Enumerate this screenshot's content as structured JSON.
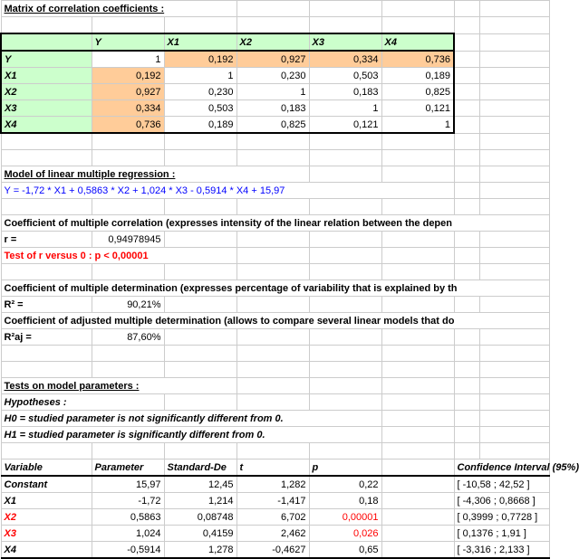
{
  "colors": {
    "green": "#ccffcc",
    "orange": "#ffcc99",
    "red_text": "#ff0000",
    "blue_text": "#0000ff"
  },
  "corr": {
    "title": "Matrix of correlation coefficients :",
    "headers": [
      "Y",
      "X1",
      "X2",
      "X3",
      "X4"
    ],
    "rows": [
      {
        "label": "Y",
        "vals": [
          "1",
          "0,192",
          "0,927",
          "0,334",
          "0,736"
        ]
      },
      {
        "label": "X1",
        "vals": [
          "0,192",
          "1",
          "0,230",
          "0,503",
          "0,189"
        ]
      },
      {
        "label": "X2",
        "vals": [
          "0,927",
          "0,230",
          "1",
          "0,183",
          "0,825"
        ]
      },
      {
        "label": "X3",
        "vals": [
          "0,334",
          "0,503",
          "0,183",
          "1",
          "0,121"
        ]
      },
      {
        "label": "X4",
        "vals": [
          "0,736",
          "0,189",
          "0,825",
          "0,121",
          "1"
        ]
      }
    ]
  },
  "model": {
    "title": "Model of linear multiple regression :",
    "formula": "Y = -1,72 * X1 + 0,5863 * X2 + 1,024 * X3 - 0,5914 * X4 + 15,97"
  },
  "r": {
    "title": "Coefficient of multiple correlation (expresses intensity of the linear relation between the depen",
    "label": "r =",
    "value": "0,94978945",
    "test": "Test of r versus 0 : p < 0,00001"
  },
  "r2": {
    "title": "Coefficient of multiple determination (expresses percentage of variability that is explained by th",
    "label": "R² =",
    "value": "90,21%"
  },
  "r2aj": {
    "title": "Coefficient of adjusted multiple determination (allows to compare several linear models that do",
    "label": "R²aj =",
    "value": "87,60%"
  },
  "tests": {
    "title": "Tests on model parameters :",
    "hyp": "Hypotheses :",
    "h0": "H0 = studied parameter is not significantly different from 0.",
    "h1": "H1 = studied parameter is significantly different from 0."
  },
  "params": {
    "headers": [
      "Variable",
      "Parameter",
      "Standard-De",
      "t",
      "p",
      "Confidence Interval (95%)"
    ],
    "rows": [
      {
        "v": "Constant",
        "p": "15,97",
        "sd": "12,45",
        "t": "1,282",
        "pv": "0,22",
        "ci": "[ -10,58 ; 42,52 ]",
        "red": false
      },
      {
        "v": "X1",
        "p": "-1,72",
        "sd": "1,214",
        "t": "-1,417",
        "pv": "0,18",
        "ci": "[ -4,306 ; 0,8668 ]",
        "red": false
      },
      {
        "v": "X2",
        "p": "0,5863",
        "sd": "0,08748",
        "t": "6,702",
        "pv": "0,00001",
        "ci": "[ 0,3999 ; 0,7728 ]",
        "red": true
      },
      {
        "v": "X3",
        "p": "1,024",
        "sd": "0,4159",
        "t": "2,462",
        "pv": "0,026",
        "ci": "[ 0,1376 ; 1,91 ]",
        "red": true
      },
      {
        "v": "X4",
        "p": "-0,5914",
        "sd": "1,278",
        "t": "-0,4627",
        "pv": "0,65",
        "ci": "[ -3,316 ; 2,133 ]",
        "red": false
      }
    ]
  }
}
